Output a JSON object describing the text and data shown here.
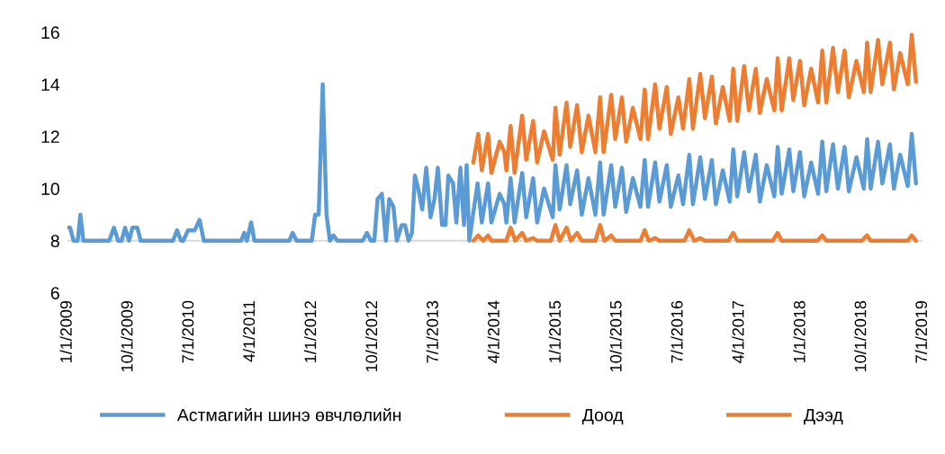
{
  "chart_data": {
    "type": "line",
    "xlim": [
      "2009-01-01",
      "2019-07-01"
    ],
    "xticks": [
      {
        "value": "2009-01-01",
        "label": "1/1/2009"
      },
      {
        "value": "2009-10-01",
        "label": "10/1/2009"
      },
      {
        "value": "2010-07-01",
        "label": "7/1/2010"
      },
      {
        "value": "2011-04-01",
        "label": "4/1/2011"
      },
      {
        "value": "2012-01-01",
        "label": "1/1/2012"
      },
      {
        "value": "2012-10-01",
        "label": "10/1/2012"
      },
      {
        "value": "2013-07-01",
        "label": "7/1/2013"
      },
      {
        "value": "2014-04-01",
        "label": "4/1/2014"
      },
      {
        "value": "2015-01-01",
        "label": "1/1/2015"
      },
      {
        "value": "2015-10-01",
        "label": "10/1/2015"
      },
      {
        "value": "2016-07-01",
        "label": "7/1/2016"
      },
      {
        "value": "2017-04-01",
        "label": "4/1/2017"
      },
      {
        "value": "2018-01-01",
        "label": "1/1/2018"
      },
      {
        "value": "2018-10-01",
        "label": "10/1/2018"
      },
      {
        "value": "2019-07-01",
        "label": "7/1/2019"
      }
    ],
    "ylim": [
      6,
      16
    ],
    "yticks": [
      6,
      8,
      10,
      12,
      14,
      16
    ],
    "grid": false,
    "legend": "bottom",
    "marker": "none",
    "line_style": "solid",
    "ref_lines": [
      {
        "axis": "y",
        "value": 8,
        "color": "#d9d9d9"
      }
    ],
    "series": [
      {
        "name": "Астмагийн шинэ өвчлөлийн",
        "color": "#5b9bd5",
        "x": [
          "2009-01-01",
          "2009-01-13",
          "2009-01-28",
          "2009-02-16",
          "2009-02-28",
          "2009-03-13",
          "2009-07-07",
          "2009-07-28",
          "2009-08-16",
          "2009-09-01",
          "2009-09-16",
          "2009-10-04",
          "2009-10-19",
          "2009-11-10",
          "2009-11-25",
          "2010-04-19",
          "2010-05-07",
          "2010-05-25",
          "2010-06-04",
          "2010-06-25",
          "2010-07-25",
          "2010-08-16",
          "2010-09-04",
          "2011-02-19",
          "2011-03-04",
          "2011-03-16",
          "2011-04-04",
          "2011-04-19",
          "2011-09-22",
          "2011-10-07",
          "2011-10-25",
          "2012-01-01",
          "2012-01-16",
          "2012-02-01",
          "2012-02-19",
          "2012-03-07",
          "2012-03-22",
          "2012-04-07",
          "2012-04-25",
          "2012-08-16",
          "2012-09-04",
          "2012-09-22",
          "2012-10-07",
          "2012-10-22",
          "2012-11-10",
          "2012-11-28",
          "2012-12-13",
          "2013-01-01",
          "2013-01-16",
          "2013-02-07",
          "2013-02-22",
          "2013-03-10",
          "2013-03-25",
          "2013-04-07",
          "2013-04-22",
          "2013-05-10",
          "2013-05-28",
          "2013-06-16",
          "2013-07-04",
          "2013-07-19",
          "2013-08-07",
          "2013-08-22",
          "2013-09-04",
          "2013-09-25",
          "2013-10-10",
          "2013-10-28",
          "2013-11-13",
          "2013-11-25",
          "2013-12-07",
          "2014-01-13",
          "2014-02-01",
          "2014-03-01",
          "2014-03-16",
          "2014-04-22",
          "2014-05-13",
          "2014-05-22",
          "2014-06-10",
          "2014-06-28",
          "2014-08-01",
          "2014-08-19",
          "2014-09-19",
          "2014-10-07",
          "2014-11-07",
          "2014-12-16",
          "2014-12-28",
          "2015-01-16",
          "2015-02-16",
          "2015-03-04",
          "2015-04-04",
          "2015-04-25",
          "2015-05-25",
          "2015-06-25",
          "2015-07-16",
          "2015-08-01",
          "2015-09-04",
          "2015-09-22",
          "2015-10-22",
          "2015-11-10",
          "2015-12-10",
          "2016-01-13",
          "2016-02-01",
          "2016-02-16",
          "2016-03-19",
          "2016-04-07",
          "2016-05-10",
          "2016-05-28",
          "2016-07-01",
          "2016-07-22",
          "2016-08-19",
          "2016-09-04",
          "2016-10-07",
          "2016-10-28",
          "2016-11-28",
          "2016-12-16",
          "2017-01-16",
          "2017-02-16",
          "2017-03-04",
          "2017-03-22",
          "2017-04-22",
          "2017-05-13",
          "2017-06-13",
          "2017-07-01",
          "2017-08-01",
          "2017-09-04",
          "2017-09-19",
          "2017-10-07",
          "2017-11-10",
          "2017-11-28",
          "2017-12-28",
          "2018-01-16",
          "2018-02-16",
          "2018-03-19",
          "2018-04-07",
          "2018-04-25",
          "2018-05-25",
          "2018-06-16",
          "2018-07-16",
          "2018-08-04",
          "2018-09-07",
          "2018-10-10",
          "2018-10-25",
          "2018-11-10",
          "2018-12-13",
          "2019-01-01",
          "2019-02-04",
          "2019-02-22",
          "2019-03-22",
          "2019-04-25",
          "2019-05-13",
          "2019-06-01"
        ],
        "values": [
          8.5,
          8.5,
          8,
          8,
          9,
          8,
          8,
          8.5,
          8,
          8,
          8.5,
          8,
          8.5,
          8.5,
          8,
          8,
          8.4,
          8,
          8,
          8.4,
          8.4,
          8.8,
          8,
          8,
          8.3,
          8,
          8.7,
          8,
          8,
          8.3,
          8,
          8,
          9,
          9,
          14,
          9,
          8,
          8.2,
          8,
          8,
          8.3,
          8,
          8,
          9.6,
          9.8,
          8,
          9.6,
          9.3,
          8,
          8.6,
          8.6,
          8,
          8.3,
          10.5,
          10,
          9.2,
          10.8,
          8.9,
          9.6,
          10.8,
          8.6,
          8.6,
          10.5,
          10.2,
          8.7,
          10.8,
          8.6,
          10.9,
          8.0,
          10.2,
          8.7,
          10.2,
          8.7,
          9.8,
          9.4,
          8.7,
          10.4,
          8.7,
          10.6,
          8.9,
          10.4,
          8.7,
          10.0,
          8.9,
          10.9,
          9.2,
          10.9,
          9.4,
          10.7,
          9.0,
          10.4,
          9.0,
          11.0,
          9.0,
          10.9,
          9.3,
          10.8,
          9.1,
          10.4,
          9.3,
          11.1,
          9.3,
          11.0,
          9.5,
          10.9,
          9.3,
          10.5,
          9.4,
          11.3,
          9.4,
          11.2,
          9.6,
          11.1,
          9.4,
          10.7,
          9.5,
          11.5,
          9.7,
          11.4,
          9.9,
          11.3,
          9.5,
          10.9,
          9.7,
          11.6,
          9.8,
          11.5,
          9.9,
          11.4,
          9.7,
          11.0,
          9.8,
          11.8,
          9.9,
          11.7,
          10.0,
          11.6,
          9.9,
          11.2,
          10.0,
          11.9,
          10.0,
          11.8,
          10.2,
          11.7,
          10.0,
          11.3,
          10.1,
          12.1,
          10.2
        ]
      },
      {
        "name": "Доод",
        "color": "#ed7d31",
        "x": [
          "2013-12-25",
          "2014-01-16",
          "2014-02-07",
          "2014-03-01",
          "2014-03-16",
          "2014-05-22",
          "2014-06-10",
          "2014-07-01",
          "2014-08-01",
          "2014-08-19",
          "2014-09-19",
          "2014-10-07",
          "2014-12-07",
          "2014-12-28",
          "2015-01-16",
          "2015-02-16",
          "2015-03-07",
          "2015-04-04",
          "2015-04-25",
          "2015-06-25",
          "2015-07-16",
          "2015-08-04",
          "2015-09-04",
          "2015-09-22",
          "2015-10-10",
          "2016-01-13",
          "2016-02-01",
          "2016-02-19",
          "2016-03-19",
          "2016-04-07",
          "2016-07-28",
          "2016-08-19",
          "2016-09-10",
          "2016-10-07",
          "2016-10-28",
          "2017-02-10",
          "2017-03-04",
          "2017-03-22",
          "2017-08-28",
          "2017-09-19",
          "2017-10-07",
          "2018-03-16",
          "2018-04-07",
          "2018-04-25",
          "2018-10-01",
          "2018-10-25",
          "2018-11-10",
          "2019-04-25",
          "2019-05-13",
          "2019-06-01"
        ],
        "values": [
          8.0,
          8.2,
          8.0,
          8.2,
          8.0,
          8.0,
          8.5,
          8.0,
          8.3,
          8.0,
          8.1,
          8.0,
          8.0,
          8.6,
          8.0,
          8.5,
          8.0,
          8.3,
          8.0,
          8.0,
          8.6,
          8.0,
          8.2,
          8.0,
          8.0,
          8.0,
          8.4,
          8.0,
          8.1,
          8.0,
          8.0,
          8.4,
          8.0,
          8.1,
          8.0,
          8.0,
          8.3,
          8.0,
          8.0,
          8.3,
          8.0,
          8.0,
          8.2,
          8.0,
          8.0,
          8.2,
          8.0,
          8.0,
          8.2,
          8.0
        ]
      },
      {
        "name": "Дээд",
        "color": "#ed7d31",
        "x": [
          "2013-12-25",
          "2014-01-16",
          "2014-02-01",
          "2014-03-01",
          "2014-03-16",
          "2014-04-22",
          "2014-05-13",
          "2014-05-22",
          "2014-06-10",
          "2014-06-28",
          "2014-08-01",
          "2014-08-19",
          "2014-09-19",
          "2014-10-07",
          "2014-11-07",
          "2014-12-16",
          "2014-12-28",
          "2015-01-16",
          "2015-02-16",
          "2015-03-04",
          "2015-04-04",
          "2015-04-25",
          "2015-05-25",
          "2015-06-25",
          "2015-07-16",
          "2015-08-01",
          "2015-09-04",
          "2015-09-22",
          "2015-10-22",
          "2015-11-10",
          "2015-12-10",
          "2016-01-13",
          "2016-02-01",
          "2016-02-16",
          "2016-03-19",
          "2016-04-07",
          "2016-05-10",
          "2016-05-28",
          "2016-07-01",
          "2016-07-22",
          "2016-08-19",
          "2016-09-04",
          "2016-10-07",
          "2016-10-28",
          "2016-11-28",
          "2016-12-16",
          "2017-01-16",
          "2017-02-16",
          "2017-03-04",
          "2017-03-22",
          "2017-04-22",
          "2017-05-13",
          "2017-06-13",
          "2017-07-01",
          "2017-08-01",
          "2017-09-04",
          "2017-09-19",
          "2017-10-07",
          "2017-11-10",
          "2017-11-28",
          "2017-12-28",
          "2018-01-16",
          "2018-02-16",
          "2018-03-19",
          "2018-04-07",
          "2018-04-25",
          "2018-05-25",
          "2018-06-16",
          "2018-07-16",
          "2018-08-04",
          "2018-09-07",
          "2018-10-10",
          "2018-10-25",
          "2018-11-10",
          "2018-12-13",
          "2019-01-01",
          "2019-02-04",
          "2019-02-22",
          "2019-03-22",
          "2019-04-25",
          "2019-05-13",
          "2019-06-01"
        ],
        "values": [
          11.0,
          12.1,
          10.7,
          12.1,
          10.6,
          11.8,
          11.4,
          10.7,
          12.4,
          10.6,
          12.8,
          11.1,
          12.6,
          11.0,
          12.2,
          11.1,
          13.1,
          11.3,
          13.3,
          11.6,
          13.2,
          11.4,
          12.8,
          11.4,
          13.5,
          11.4,
          13.6,
          11.9,
          13.5,
          11.8,
          13.1,
          11.9,
          13.8,
          11.9,
          14.0,
          12.3,
          13.9,
          12.1,
          13.5,
          12.3,
          14.2,
          12.3,
          14.4,
          12.7,
          14.3,
          12.5,
          13.9,
          12.6,
          14.6,
          12.6,
          14.7,
          13.0,
          14.6,
          12.9,
          14.2,
          13.0,
          15.0,
          13.0,
          15.0,
          13.4,
          14.9,
          13.2,
          14.6,
          13.3,
          15.3,
          13.3,
          15.4,
          13.7,
          15.3,
          13.5,
          14.9,
          13.7,
          15.6,
          13.7,
          15.7,
          14.0,
          15.6,
          13.8,
          15.2,
          14.0,
          15.9,
          14.1
        ]
      }
    ]
  }
}
